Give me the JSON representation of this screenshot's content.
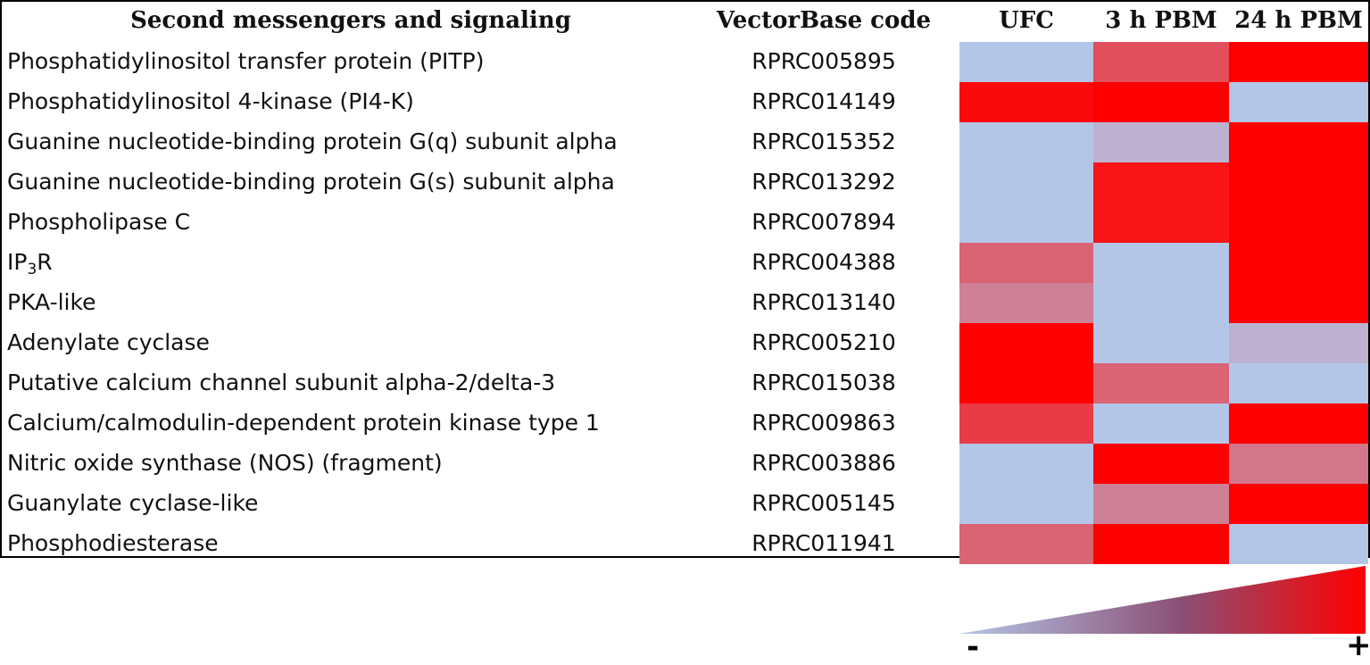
{
  "chart_data": {
    "type": "heatmap",
    "title": "",
    "column_headers": {
      "name": "Second messengers and signaling",
      "code": "VectorBase code"
    },
    "columns": [
      "UFC",
      "3 h PBM",
      "24 h PBM"
    ],
    "rows": [
      {
        "name": "Phosphatidylinositol transfer protein (PITP)",
        "code": "RPRC005895",
        "values": [
          0.0,
          0.6,
          1.0
        ]
      },
      {
        "name": "Phosphatidylinositol 4-kinase (PI4-K)",
        "code": "RPRC014149",
        "values": [
          0.95,
          1.0,
          0.0
        ]
      },
      {
        "name": "Guanine nucleotide-binding protein G(q) subunit alpha",
        "code": "RPRC015352",
        "values": [
          0.0,
          0.1,
          1.0
        ]
      },
      {
        "name": "Guanine nucleotide-binding protein G(s) subunit alpha",
        "code": "RPRC013292",
        "values": [
          0.0,
          0.9,
          1.0
        ]
      },
      {
        "name": "Phospholipase C",
        "code": "RPRC007894",
        "values": [
          0.0,
          0.9,
          1.0
        ]
      },
      {
        "name_prefix": "IP",
        "name_sub": "3",
        "name_suffix": "R",
        "code": "RPRC004388",
        "values": [
          0.5,
          0.0,
          1.0
        ]
      },
      {
        "name": "PKA-like",
        "code": "RPRC013140",
        "values": [
          0.35,
          0.0,
          1.0
        ]
      },
      {
        "name": "Adenylate cyclase",
        "code": "RPRC005210",
        "values": [
          1.0,
          0.0,
          0.1
        ]
      },
      {
        "name": "Putative calcium channel subunit alpha-2/delta-3",
        "code": "RPRC015038",
        "values": [
          1.0,
          0.5,
          0.0
        ]
      },
      {
        "name": "Calcium/calmodulin-dependent protein kinase type 1",
        "code": "RPRC009863",
        "values": [
          0.7,
          0.0,
          1.0
        ]
      },
      {
        "name": "Nitric oxide synthase (NOS) (fragment)",
        "code": "RPRC003886",
        "values": [
          0.0,
          1.0,
          0.4
        ]
      },
      {
        "name": "Guanylate cyclase-like",
        "code": "RPRC005145",
        "values": [
          0.0,
          0.35,
          1.0
        ]
      },
      {
        "name": "Phosphodiesterase",
        "code": "RPRC011941",
        "values": [
          0.5,
          1.0,
          0.0
        ]
      }
    ],
    "color_scale": {
      "low": "#b4c6e7",
      "high": "#ff0000"
    },
    "legend": {
      "minus": "-",
      "plus": "+",
      "placement": "bottom-right"
    }
  }
}
